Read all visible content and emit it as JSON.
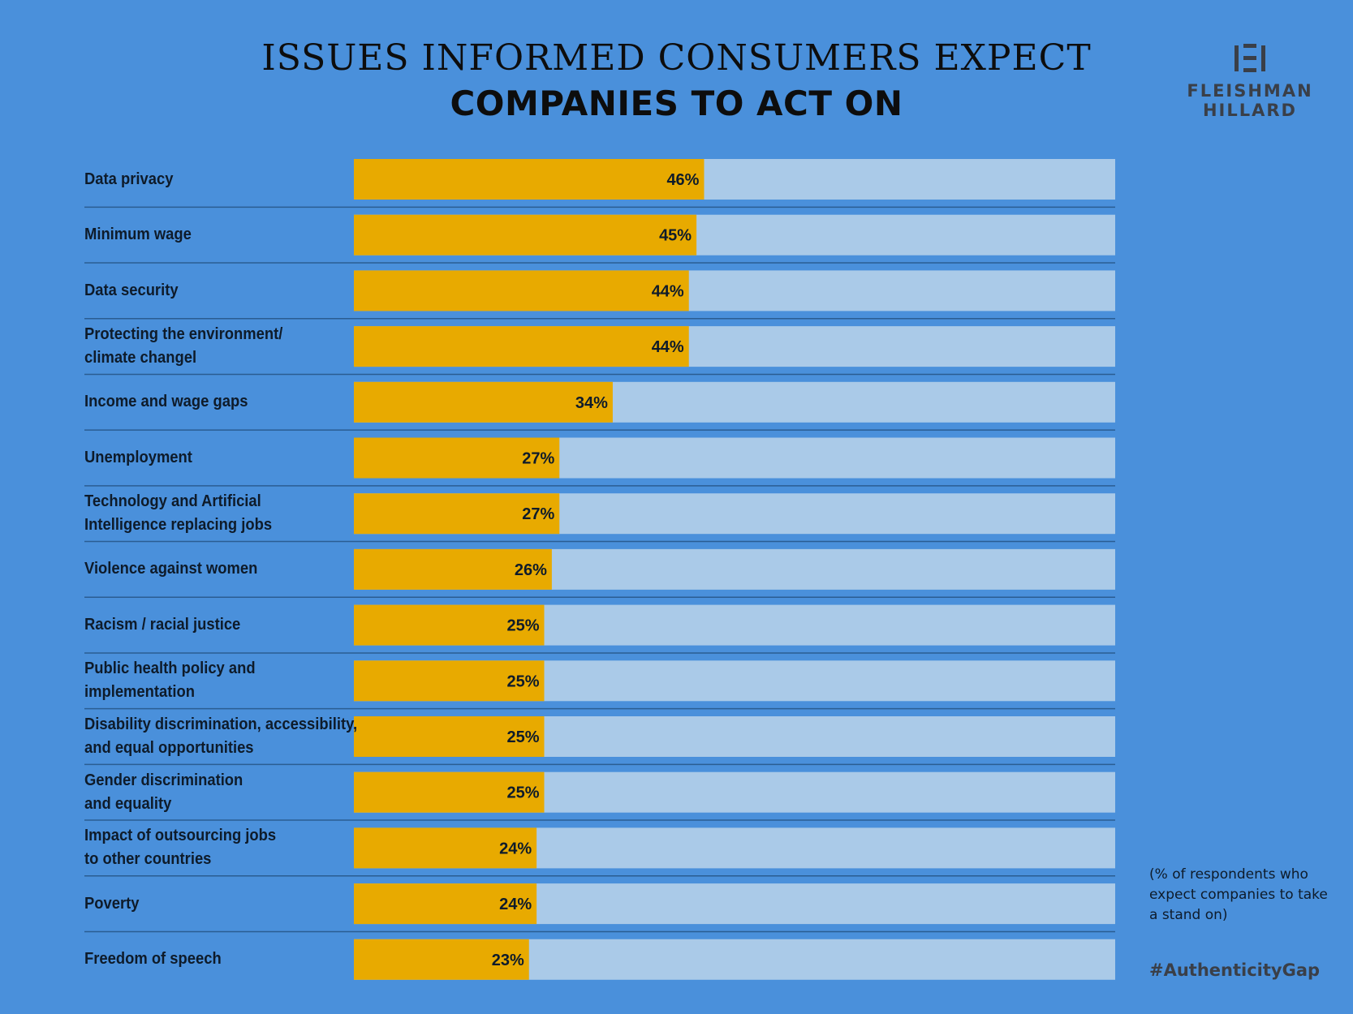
{
  "title_line1": "ISSUES INFORMED CONSUMERS EXPECT",
  "title_line2": "COMPANIES TO ACT ON",
  "logo": {
    "icon": "fleishman-hillard-logo-icon",
    "line1": "FLEISHMAN",
    "line2": "HILLARD"
  },
  "note": "(% of respondents who expect companies to take a stand on)",
  "hashtag": "#AuthenticityGap",
  "colors": {
    "background": "#4a90db",
    "bar": "#e8aa00",
    "track": "#aacae8",
    "divider": "#2a5d92",
    "text": "#0e1b2a"
  },
  "chart_data": {
    "type": "bar",
    "orientation": "horizontal",
    "xlim": [
      0,
      100
    ],
    "unit": "%",
    "categories": [
      [
        "Data privacy"
      ],
      [
        "Minimum wage"
      ],
      [
        "Data security"
      ],
      [
        "Protecting the environment/",
        "climate changel"
      ],
      [
        "Income and wage gaps"
      ],
      [
        "Unemployment"
      ],
      [
        "Technology and Artificial",
        "Intelligence replacing jobs"
      ],
      [
        "Violence against women"
      ],
      [
        "Racism / racial justice"
      ],
      [
        "Public health policy and",
        "implementation"
      ],
      [
        "Disability discrimination, accessibility,",
        "and equal opportunities"
      ],
      [
        "Gender discrimination",
        "and equality"
      ],
      [
        "Impact of outsourcing jobs",
        "to other countries"
      ],
      [
        "Poverty"
      ],
      [
        "Freedom of speech"
      ]
    ],
    "values": [
      46,
      45,
      44,
      44,
      34,
      27,
      27,
      26,
      25,
      25,
      25,
      25,
      24,
      24,
      23
    ],
    "labels": [
      "46%",
      "45%",
      "44%",
      "44%",
      "34%",
      "27%",
      "27%",
      "26%",
      "25%",
      "25%",
      "25%",
      "25%",
      "24%",
      "24%",
      "23%"
    ]
  }
}
